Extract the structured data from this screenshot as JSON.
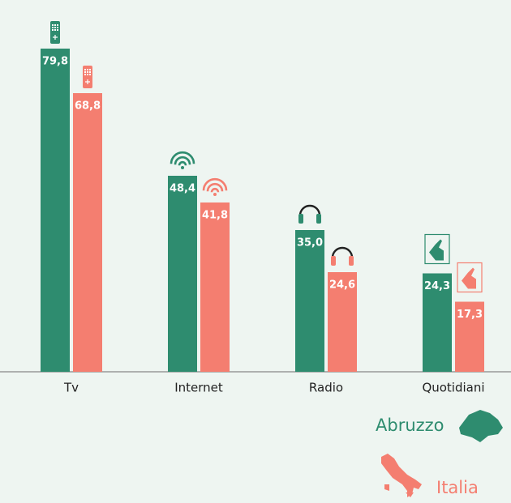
{
  "chart_data": {
    "type": "bar",
    "categories": [
      "Tv",
      "Internet",
      "Radio",
      "Quotidiani"
    ],
    "series": [
      {
        "name": "Abruzzo",
        "color": "#2e8c6f",
        "values": [
          79.8,
          48.4,
          35.0,
          24.3
        ],
        "value_labels": [
          "79,8",
          "48,4",
          "35,0",
          "24,3"
        ]
      },
      {
        "name": "Italia",
        "color": "#f47e70",
        "values": [
          68.8,
          41.8,
          24.6,
          17.3
        ],
        "value_labels": [
          "68,8",
          "41,8",
          "24,6",
          "17,3"
        ]
      }
    ]
  }
}
